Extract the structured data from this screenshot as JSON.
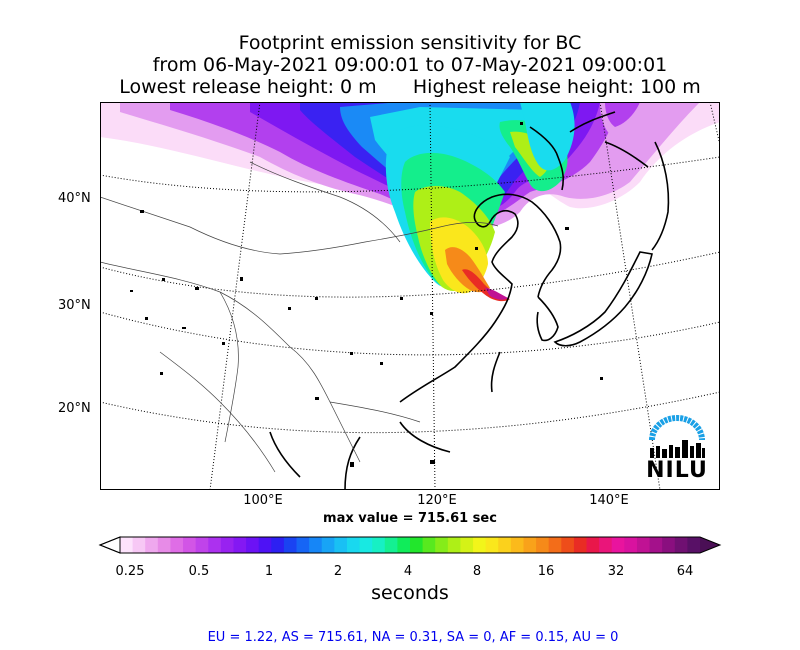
{
  "title": {
    "line1": "Footprint emission sensitivity for BC",
    "line2": "from 06-May-2021 09:00:01 to 07-May-2021 09:00:01",
    "line3": "Lowest release height: 0 m      Highest release height: 100 m"
  },
  "map": {
    "lat_labels": [
      "40°N",
      "30°N",
      "20°N"
    ],
    "lon_labels": [
      "100°E",
      "120°E",
      "140°E"
    ],
    "max_value": "max value = 715.61 sec"
  },
  "colorbar": {
    "ticks": [
      "0.25",
      "0.5",
      "1",
      "2",
      "4",
      "8",
      "16",
      "32",
      "64"
    ],
    "units": "seconds",
    "colors": [
      "#fde3fc",
      "#f7c8f5",
      "#efa8ee",
      "#e78be7",
      "#df6de6",
      "#d255e6",
      "#c043ea",
      "#ac31ef",
      "#9822f0",
      "#8418f3",
      "#6c12f5",
      "#4e12f5",
      "#2d20f2",
      "#1a43f2",
      "#1665f5",
      "#1686f7",
      "#18a4f6",
      "#19c0f4",
      "#19d8ef",
      "#18e9e2",
      "#17f0c4",
      "#14f092",
      "#10ec5a",
      "#22e62c",
      "#58e91f",
      "#85ec19",
      "#aeef17",
      "#d4f217",
      "#f2f51a",
      "#fae71c",
      "#fbd11c",
      "#fbba1b",
      "#f9a21a",
      "#f68a19",
      "#f36d19",
      "#ee4d1a",
      "#e92c24",
      "#e9174a",
      "#ea157a",
      "#e9149e",
      "#d9129f",
      "#c01294",
      "#a4118b",
      "#8a0f7f",
      "#701072",
      "#581066"
    ]
  },
  "logo": {
    "text": "NILU",
    "color": "#1aa0e6"
  },
  "stats": "EU = 1.22,  AS = 715.61,  NA = 0.31,  SA = 0,  AF = 0.15,  AU = 0"
}
